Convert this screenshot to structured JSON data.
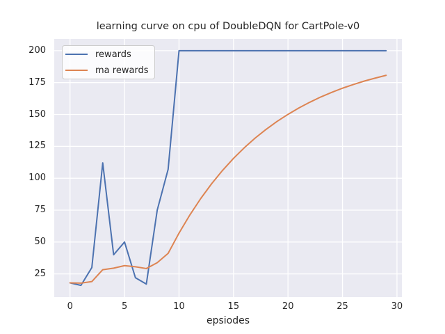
{
  "figure": {
    "title": "learning curve on cpu of DoubleDQN for CartPole-v0",
    "xlabel": "epsiodes",
    "background_color": "#ffffff",
    "axes_background_color": "#eaeaf2",
    "grid_color": "#ffffff",
    "text_color": "#262626"
  },
  "legend": {
    "position": "upper left",
    "items": [
      {
        "label": "rewards",
        "color": "#4c72b0"
      },
      {
        "label": "ma rewards",
        "color": "#dd8452"
      }
    ]
  },
  "chart_data": {
    "type": "line",
    "title": "learning curve on cpu of DoubleDQN for CartPole-v0",
    "xlabel": "epsiodes",
    "ylabel": "",
    "grid": true,
    "legend_position": "upper left",
    "x": [
      0,
      1,
      2,
      3,
      4,
      5,
      6,
      7,
      8,
      9,
      10,
      11,
      12,
      13,
      14,
      15,
      16,
      17,
      18,
      19,
      20,
      21,
      22,
      23,
      24,
      25,
      26,
      27,
      28,
      29
    ],
    "series": [
      {
        "name": "rewards",
        "color": "#4c72b0",
        "values": [
          18,
          16,
          30,
          112,
          40,
          50,
          22,
          17,
          75,
          107,
          200,
          200,
          200,
          200,
          200,
          200,
          200,
          200,
          200,
          200,
          200,
          200,
          200,
          200,
          200,
          200,
          200,
          200,
          200,
          200
        ]
      },
      {
        "name": "ma rewards",
        "color": "#dd8452",
        "values": [
          18.0,
          17.8,
          19.0,
          28.3,
          29.5,
          31.5,
          30.6,
          29.2,
          33.8,
          41.1,
          57.0,
          71.3,
          84.2,
          95.8,
          106.2,
          115.6,
          124.0,
          131.6,
          138.4,
          144.6,
          150.1,
          155.1,
          159.6,
          163.7,
          167.3,
          170.6,
          173.5,
          176.2,
          178.5,
          180.7
        ]
      }
    ],
    "xlim": [
      -1.45,
      30.45
    ],
    "ylim": [
      6.8,
      209.2
    ],
    "xticks": [
      0,
      5,
      10,
      15,
      20,
      25,
      30
    ],
    "yticks": [
      25,
      50,
      75,
      100,
      125,
      150,
      175,
      200
    ]
  }
}
